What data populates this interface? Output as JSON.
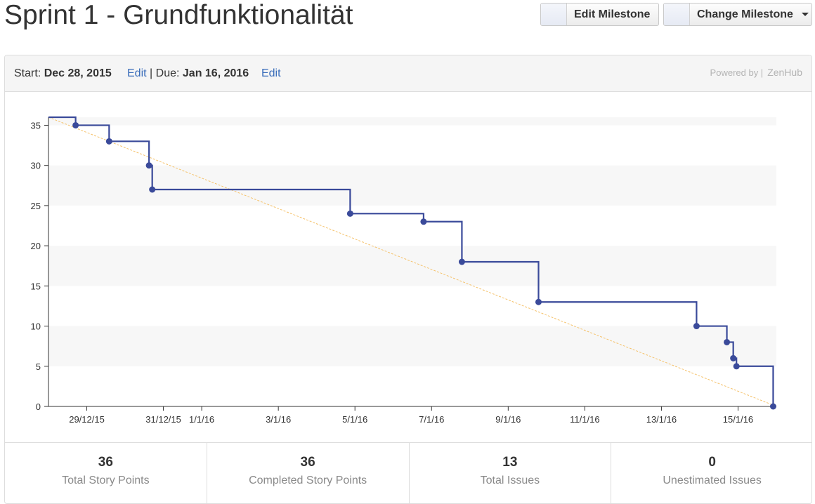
{
  "header": {
    "title": "Sprint 1 - Grundfunktionalität",
    "edit_milestone": "Edit Milestone",
    "change_milestone": "Change Milestone"
  },
  "milestone": {
    "start_label": "Start:",
    "start_date": "Dec 28, 2015",
    "edit_start": "Edit",
    "separator": "|",
    "due_label": "Due:",
    "due_date": "Jan 16, 2016",
    "edit_due": "Edit",
    "powered_by": "Powered by |",
    "brand": "ZenHub"
  },
  "chart_data": {
    "type": "line",
    "title": "",
    "xlabel": "",
    "ylabel": "",
    "ylim": [
      0,
      36
    ],
    "yticks": [
      0,
      5,
      10,
      15,
      20,
      25,
      30,
      35
    ],
    "x_range": [
      "2015-12-28",
      "2016-01-16"
    ],
    "xticks": [
      {
        "label": "29/12/15",
        "date": "2015-12-29"
      },
      {
        "label": "31/12/15",
        "date": "2015-12-31"
      },
      {
        "label": "1/1/16",
        "date": "2016-01-01"
      },
      {
        "label": "3/1/16",
        "date": "2016-01-03"
      },
      {
        "label": "5/1/16",
        "date": "2016-01-05"
      },
      {
        "label": "7/1/16",
        "date": "2016-01-07"
      },
      {
        "label": "9/1/16",
        "date": "2016-01-09"
      },
      {
        "label": "11/1/16",
        "date": "2016-01-11"
      },
      {
        "label": "13/1/16",
        "date": "2016-01-13"
      },
      {
        "label": "15/1/16",
        "date": "2016-01-15"
      }
    ],
    "grid": "alternating horizontal bands",
    "series": [
      {
        "color": "#3a4a9a",
        "style": "step",
        "points": [
          {
            "x": "2015-12-28T00:00",
            "y": 36
          },
          {
            "x": "2015-12-28T17:00",
            "y": 35
          },
          {
            "x": "2015-12-29T14:00",
            "y": 33
          },
          {
            "x": "2015-12-30T15:00",
            "y": 30
          },
          {
            "x": "2015-12-30T17:00",
            "y": 27
          },
          {
            "x": "2016-01-04T21:00",
            "y": 24
          },
          {
            "x": "2016-01-06T19:00",
            "y": 23
          },
          {
            "x": "2016-01-07T19:00",
            "y": 18
          },
          {
            "x": "2016-01-09T19:00",
            "y": 13
          },
          {
            "x": "2016-01-13T22:00",
            "y": 10
          },
          {
            "x": "2016-01-14T17:00",
            "y": 8
          },
          {
            "x": "2016-01-14T21:00",
            "y": 6
          },
          {
            "x": "2016-01-14T23:00",
            "y": 5
          },
          {
            "x": "2016-01-15T22:00",
            "y": 0
          }
        ]
      },
      {
        "color": "#f5c26b",
        "style": "dashed",
        "points": [
          {
            "x": "2015-12-28T00:00",
            "y": 36
          },
          {
            "x": "2016-01-16T00:00",
            "y": 0
          }
        ]
      }
    ]
  },
  "stats": [
    {
      "value": "36",
      "label": "Total Story Points"
    },
    {
      "value": "36",
      "label": "Completed Story Points"
    },
    {
      "value": "13",
      "label": "Total Issues"
    },
    {
      "value": "0",
      "label": "Unestimated Issues"
    }
  ]
}
